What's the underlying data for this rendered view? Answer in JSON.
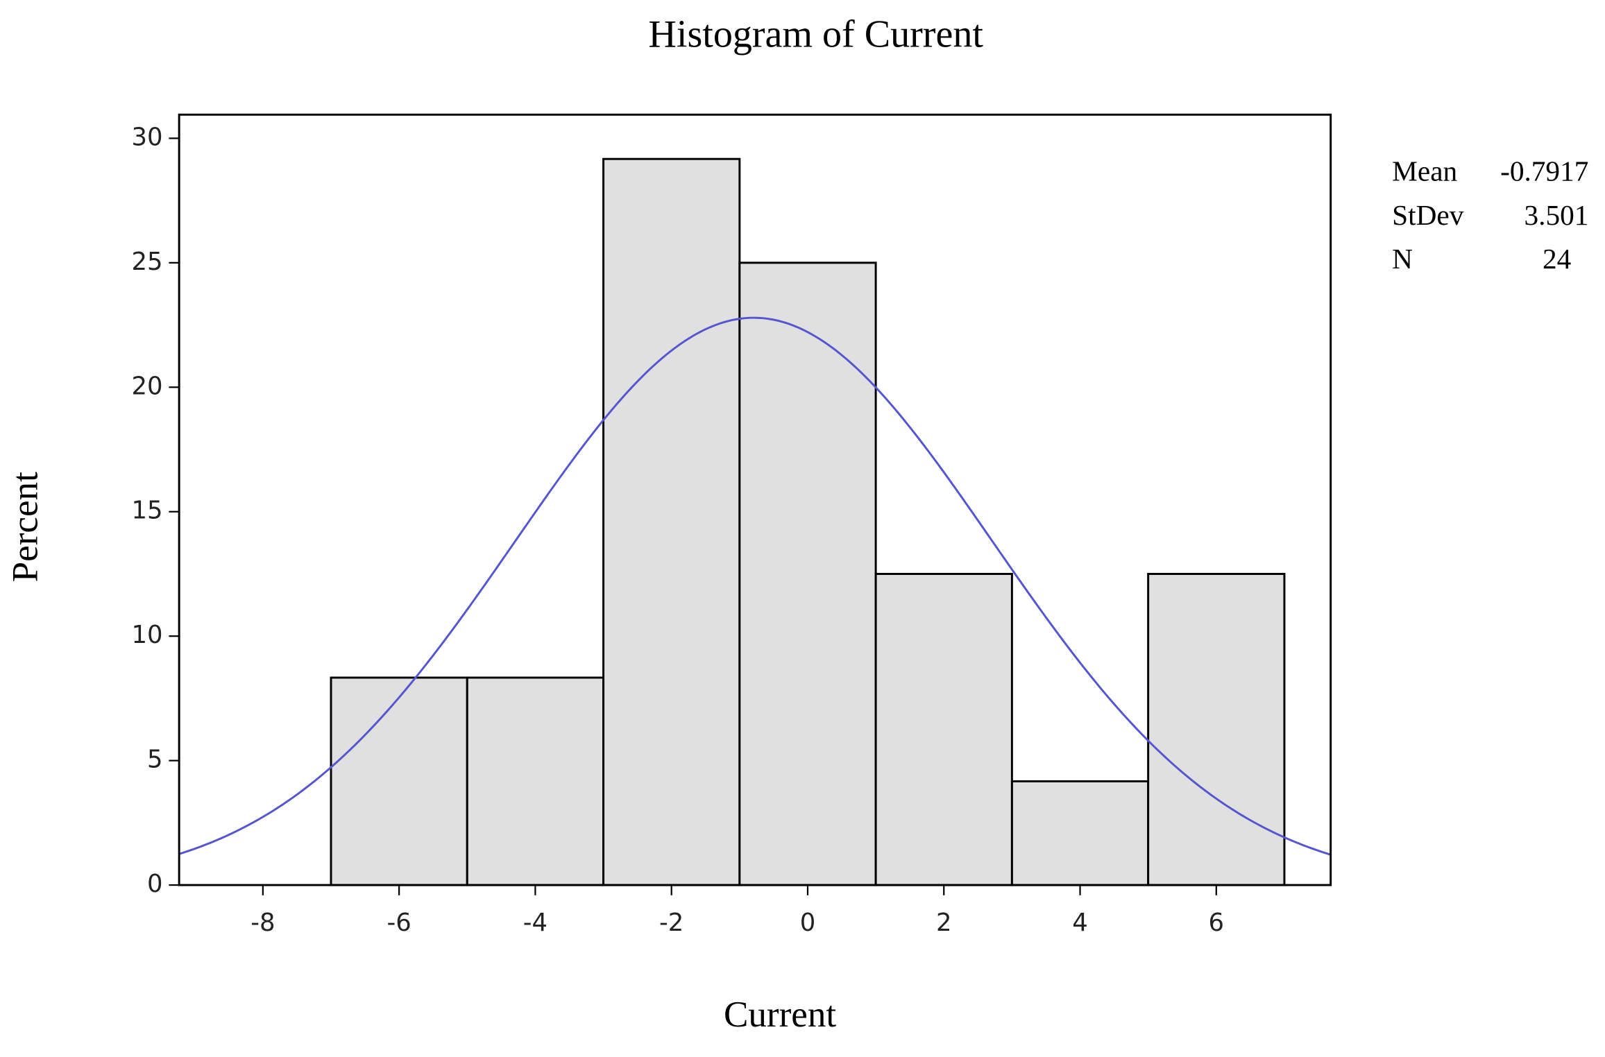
{
  "chart_data": {
    "type": "histogram",
    "title": "Histogram of Current",
    "x_label": "Current",
    "y_label": "Percent",
    "bins": [
      -7,
      -5,
      -3,
      -1,
      1,
      3,
      5,
      7
    ],
    "values": [
      8.333,
      8.333,
      29.17,
      25,
      12.5,
      4.167,
      12.5
    ],
    "color": "#e0e0e0",
    "curve_color": "#5555d0",
    "xlim": [
      -9.23,
      7.68
    ],
    "ylim": [
      0,
      30.95
    ],
    "xticks": [
      -8,
      -6,
      -4,
      -2,
      0,
      2,
      4,
      6
    ],
    "yticks": [
      0,
      5,
      10,
      15,
      20,
      25,
      30
    ],
    "stats": [
      {
        "label": "Mean",
        "value": -0.7917
      },
      {
        "label": "StDev",
        "value": 3.501
      },
      {
        "label": "N",
        "value": 24
      }
    ]
  }
}
